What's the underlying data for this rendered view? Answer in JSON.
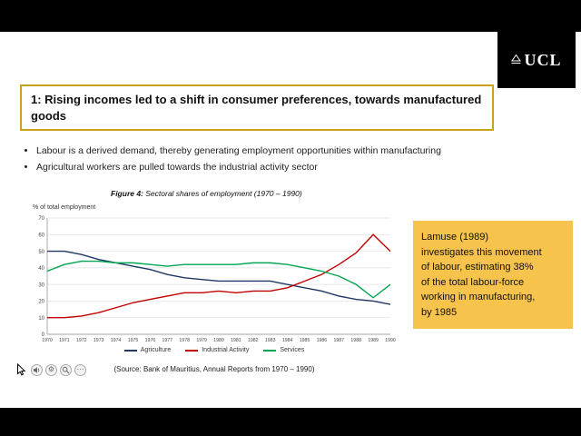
{
  "player": {
    "toolbar": {
      "gear_glyph": "⚙",
      "ellipsis_glyph": "⋯"
    }
  },
  "slide": {
    "logo_text": "UCL",
    "title": "1: Rising incomes led to a shift in consumer preferences, towards manufactured goods",
    "bullets": [
      "Labour is a derived demand, thereby generating employment opportunities within manufacturing",
      "Agricultural workers are pulled towards the industrial activity sector"
    ],
    "figure_caption": {
      "label": "Figure 4:",
      "text": " Sectoral shares of employment (1970 – 1990)"
    },
    "source_note": "(Source: Bank of Mauritius, Annual Reports from 1970 – 1990)",
    "callout": {
      "bg_color": "#F6C34C",
      "lines": [
        "Lamuse (1989)",
        "investigates this movement",
        "of labour, estimating 38%",
        "of the total labour-force",
        "working in manufacturing,",
        "by 1985"
      ]
    }
  },
  "chart_data": {
    "type": "line",
    "title": "Figure 4: Sectoral shares of employment (1970 – 1990)",
    "ylabel": "% of total employment",
    "xlabel": "",
    "ylim": [
      0,
      70
    ],
    "yticks": [
      0,
      10,
      20,
      30,
      40,
      50,
      60,
      70
    ],
    "grid": true,
    "legend_position": "bottom",
    "x": [
      1970,
      1971,
      1972,
      1973,
      1974,
      1975,
      1976,
      1977,
      1978,
      1979,
      1980,
      1981,
      1982,
      1983,
      1984,
      1985,
      1986,
      1987,
      1988,
      1989,
      1990
    ],
    "series": [
      {
        "name": "Agriculture",
        "color": "#1F3864",
        "values": [
          50,
          50,
          48,
          45,
          43,
          41,
          39,
          36,
          34,
          33,
          32,
          32,
          32,
          32,
          30,
          28,
          26,
          23,
          21,
          20,
          18
        ]
      },
      {
        "name": "Industrial Activity",
        "color": "#C00000",
        "values": [
          10,
          10,
          11,
          13,
          16,
          19,
          21,
          23,
          25,
          25,
          26,
          25,
          26,
          26,
          28,
          32,
          36,
          42,
          49,
          60,
          50
        ]
      },
      {
        "name": "Services",
        "color": "#00A651",
        "values": [
          38,
          42,
          44,
          44,
          43,
          43,
          42,
          41,
          42,
          42,
          42,
          42,
          43,
          43,
          42,
          40,
          38,
          35,
          30,
          22,
          30
        ]
      }
    ]
  }
}
